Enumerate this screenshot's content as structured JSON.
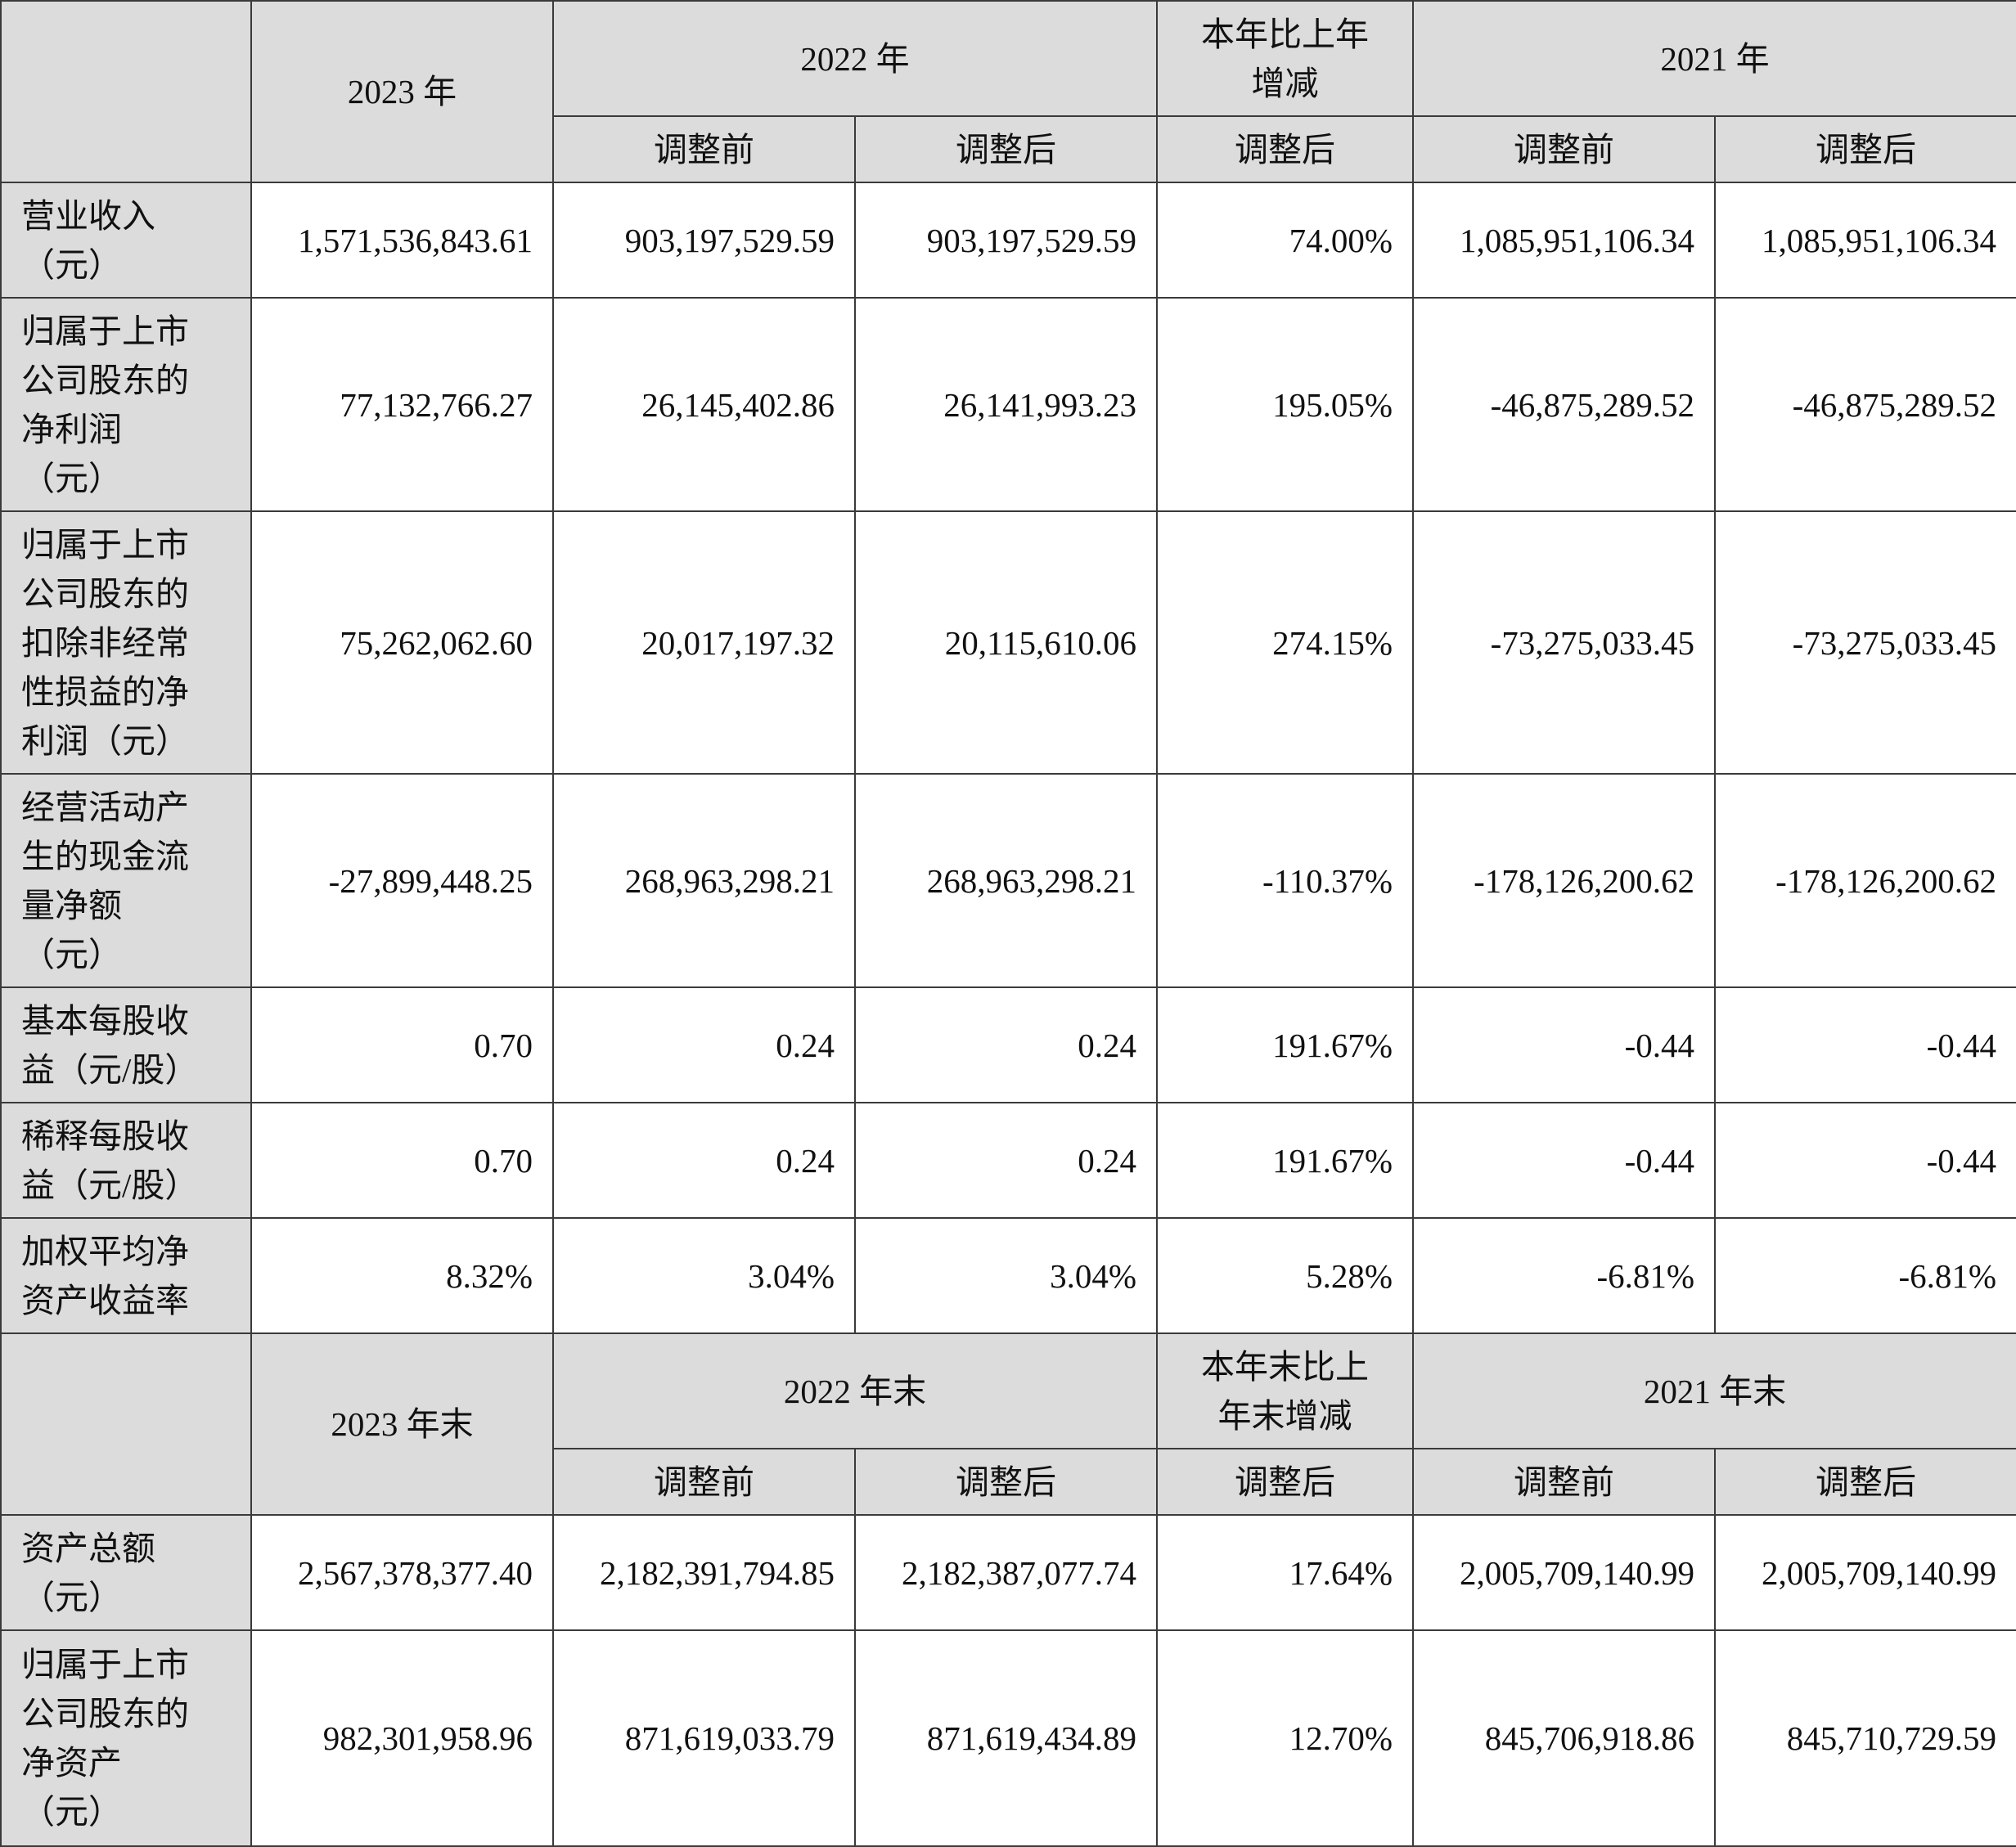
{
  "table1": {
    "headers": {
      "y2023": "2023 年",
      "y2022": "2022 年",
      "change": "本年比上年\n增减",
      "y2021": "2021 年",
      "sub": [
        "调整前",
        "调整后",
        "调整后",
        "调整前",
        "调整后"
      ]
    },
    "rows": [
      {
        "label": "营业收入\n（元）",
        "values": [
          "1,571,536,843.61",
          "903,197,529.59",
          "903,197,529.59",
          "74.00%",
          "1,085,951,106.34",
          "1,085,951,106.34"
        ]
      },
      {
        "label": "归属于上市\n公司股东的\n净利润\n（元）",
        "values": [
          "77,132,766.27",
          "26,145,402.86",
          "26,141,993.23",
          "195.05%",
          "-46,875,289.52",
          "-46,875,289.52"
        ]
      },
      {
        "label": "归属于上市\n公司股东的\n扣除非经常\n性损益的净\n利润（元）",
        "values": [
          "75,262,062.60",
          "20,017,197.32",
          "20,115,610.06",
          "274.15%",
          "-73,275,033.45",
          "-73,275,033.45"
        ]
      },
      {
        "label": "经营活动产\n生的现金流\n量净额\n（元）",
        "values": [
          "-27,899,448.25",
          "268,963,298.21",
          "268,963,298.21",
          "-110.37%",
          "-178,126,200.62",
          "-178,126,200.62"
        ]
      },
      {
        "label": "基本每股收\n益（元/股）",
        "values": [
          "0.70",
          "0.24",
          "0.24",
          "191.67%",
          "-0.44",
          "-0.44"
        ]
      },
      {
        "label": "稀释每股收\n益（元/股）",
        "values": [
          "0.70",
          "0.24",
          "0.24",
          "191.67%",
          "-0.44",
          "-0.44"
        ]
      },
      {
        "label": "加权平均净\n资产收益率",
        "values": [
          "8.32%",
          "3.04%",
          "3.04%",
          "5.28%",
          "-6.81%",
          "-6.81%"
        ]
      }
    ]
  },
  "table2": {
    "headers": {
      "y2023": "2023 年末",
      "y2022": "2022 年末",
      "change": "本年末比上\n年末增减",
      "y2021": "2021 年末",
      "sub": [
        "调整前",
        "调整后",
        "调整后",
        "调整前",
        "调整后"
      ]
    },
    "rows": [
      {
        "label": "资产总额\n（元）",
        "values": [
          "2,567,378,377.40",
          "2,182,391,794.85",
          "2,182,387,077.74",
          "17.64%",
          "2,005,709,140.99",
          "2,005,709,140.99"
        ]
      },
      {
        "label": "归属于上市\n公司股东的\n净资产\n（元）",
        "values": [
          "982,301,958.96",
          "871,619,033.79",
          "871,619,434.89",
          "12.70%",
          "845,706,918.86",
          "845,710,729.59"
        ]
      }
    ]
  }
}
